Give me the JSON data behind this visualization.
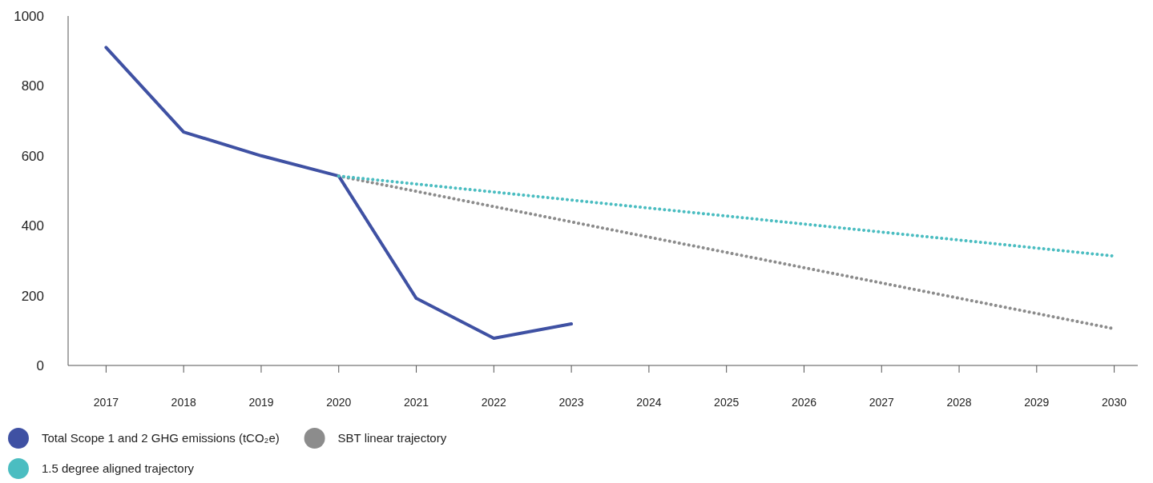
{
  "chart_data": {
    "type": "line",
    "categories": [
      "2017",
      "2018",
      "2019",
      "2020",
      "2021",
      "2022",
      "2023",
      "2024",
      "2025",
      "2026",
      "2027",
      "2028",
      "2029",
      "2030"
    ],
    "series": [
      {
        "name": "Total Scope 1 and 2 GHG emissions (tCO₂e)",
        "color": "#3f51a3",
        "values": [
          910,
          668,
          600,
          542,
          192,
          78,
          119,
          null,
          null,
          null,
          null,
          null,
          null,
          null
        ],
        "line_style": "solid"
      },
      {
        "name": "SBT linear trajectory",
        "color": "#8c8c8c",
        "values": [
          null,
          null,
          null,
          542,
          null,
          null,
          null,
          null,
          null,
          null,
          null,
          null,
          null,
          105
        ],
        "line_style": "dotted"
      },
      {
        "name": "1.5 degree aligned trajectory",
        "color": "#4bbdc1",
        "values": [
          null,
          null,
          null,
          542,
          null,
          null,
          null,
          null,
          null,
          null,
          null,
          null,
          null,
          313
        ],
        "line_style": "dotted"
      }
    ],
    "ylim": [
      0,
      1000
    ],
    "yticks": [
      0,
      200,
      400,
      600,
      800,
      1000
    ],
    "grid": false,
    "legend": "bottom left",
    "marker": "none"
  }
}
